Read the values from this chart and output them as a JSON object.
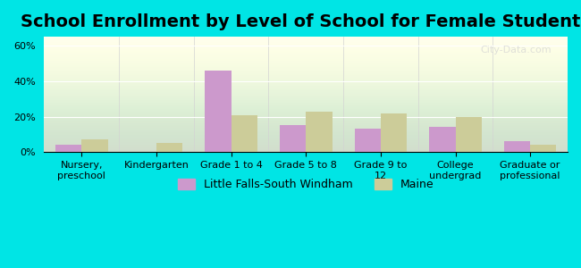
{
  "title": "School Enrollment by Level of School for Female Students",
  "categories": [
    "Nursery,\npreschool",
    "Kindergarten",
    "Grade 1 to 4",
    "Grade 5 to 8",
    "Grade 9 to\n12",
    "College\nundergrad",
    "Graduate or\nprofessional"
  ],
  "series1_label": "Little Falls-South Windham",
  "series2_label": "Maine",
  "series1_values": [
    4,
    0,
    46,
    15,
    13,
    14,
    6
  ],
  "series2_values": [
    7,
    5,
    21,
    23,
    22,
    20,
    4
  ],
  "series1_color": "#cc99cc",
  "series2_color": "#cccc99",
  "background_color": "#00e5e5",
  "plot_bg_top": "#f0fff0",
  "plot_bg_bottom": "#fffff0",
  "ylim": [
    0,
    65
  ],
  "yticks": [
    0,
    20,
    40,
    60
  ],
  "ytick_labels": [
    "0%",
    "20%",
    "40%",
    "60%"
  ],
  "title_fontsize": 14,
  "axis_fontsize": 8,
  "legend_fontsize": 9,
  "bar_width": 0.35
}
